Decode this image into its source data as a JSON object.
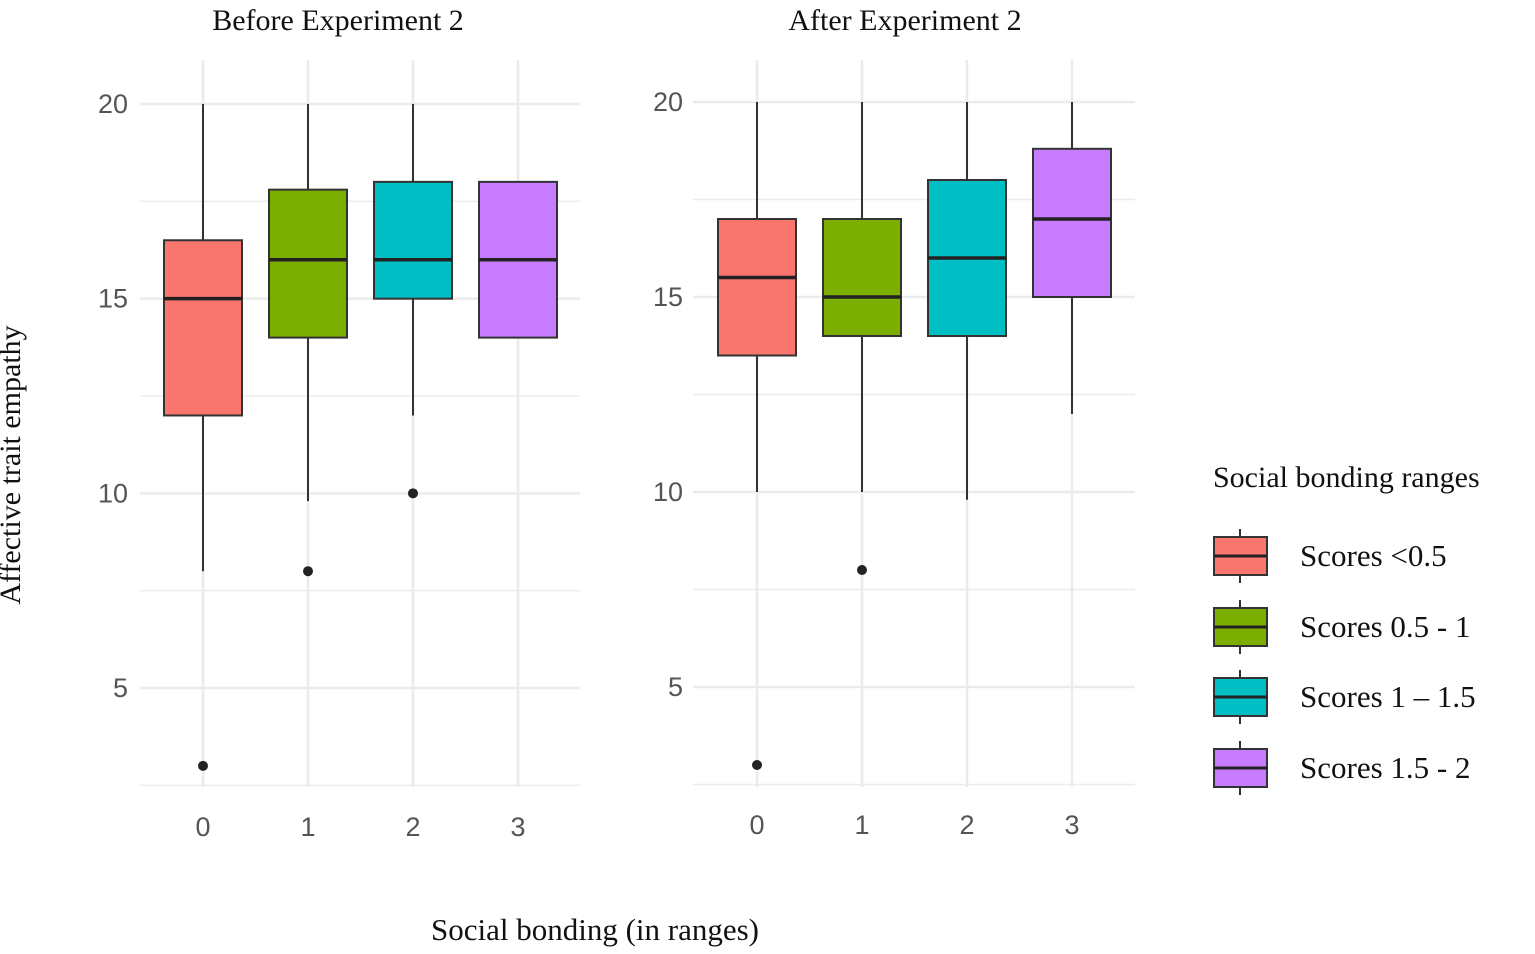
{
  "chart_data": [
    {
      "type": "boxplot",
      "title": "Before Experiment 2",
      "xlabel": "Social bonding (in ranges)",
      "ylabel": "Affective trait empathy",
      "ylim": [
        2.5,
        20.5
      ],
      "yticks": [
        5,
        10,
        15,
        20
      ],
      "categories": [
        "0",
        "1",
        "2",
        "3"
      ],
      "boxes": [
        {
          "group": "Scores <0.5",
          "whisker_low": 8,
          "q1": 12,
          "median": 15,
          "q3": 16.5,
          "whisker_high": 20,
          "outliers": [
            3
          ]
        },
        {
          "group": "Scores 0.5 - 1",
          "whisker_low": 9.8,
          "q1": 14,
          "median": 16,
          "q3": 17.8,
          "whisker_high": 20,
          "outliers": [
            8
          ]
        },
        {
          "group": "Scores 1 – 1.5",
          "whisker_low": 12,
          "q1": 15,
          "median": 16,
          "q3": 18,
          "whisker_high": 20,
          "outliers": [
            10
          ]
        },
        {
          "group": "Scores 1.5 - 2",
          "whisker_low": 14,
          "q1": 14,
          "median": 16,
          "q3": 18,
          "whisker_high": 18,
          "outliers": []
        }
      ]
    },
    {
      "type": "boxplot",
      "title": "After Experiment 2",
      "xlabel": "Social bonding (in ranges)",
      "ylabel": "Affective trait empathy",
      "ylim": [
        2.5,
        20.5
      ],
      "yticks": [
        5,
        10,
        15,
        20
      ],
      "categories": [
        "0",
        "1",
        "2",
        "3"
      ],
      "boxes": [
        {
          "group": "Scores <0.5",
          "whisker_low": 10,
          "q1": 13.5,
          "median": 15.5,
          "q3": 17,
          "whisker_high": 20,
          "outliers": [
            3
          ]
        },
        {
          "group": "Scores 0.5 - 1",
          "whisker_low": 10,
          "q1": 14,
          "median": 15,
          "q3": 17,
          "whisker_high": 20,
          "outliers": [
            8
          ]
        },
        {
          "group": "Scores 1 – 1.5",
          "whisker_low": 9.8,
          "q1": 14,
          "median": 16,
          "q3": 18,
          "whisker_high": 20,
          "outliers": []
        },
        {
          "group": "Scores 1.5 - 2",
          "whisker_low": 12,
          "q1": 15,
          "median": 17,
          "q3": 18.8,
          "whisker_high": 20,
          "outliers": []
        }
      ]
    }
  ],
  "shared": {
    "xlabel": "Social bonding (in ranges)",
    "ylabel": "Affective trait empathy"
  },
  "legend": {
    "title": "Social bonding ranges",
    "placement": "right",
    "items": [
      {
        "label": "Scores <0.5",
        "color": "#F8766D"
      },
      {
        "label": "Scores 0.5 - 1",
        "color": "#7CAE00"
      },
      {
        "label": "Scores 1 – 1.5",
        "color": "#00BFC4"
      },
      {
        "label": "Scores 1.5 - 2",
        "color": "#C77CFF"
      }
    ]
  },
  "colors": {
    "grid": "#EBEBEB",
    "box_stroke": "#333333",
    "whisker": "#333333"
  }
}
